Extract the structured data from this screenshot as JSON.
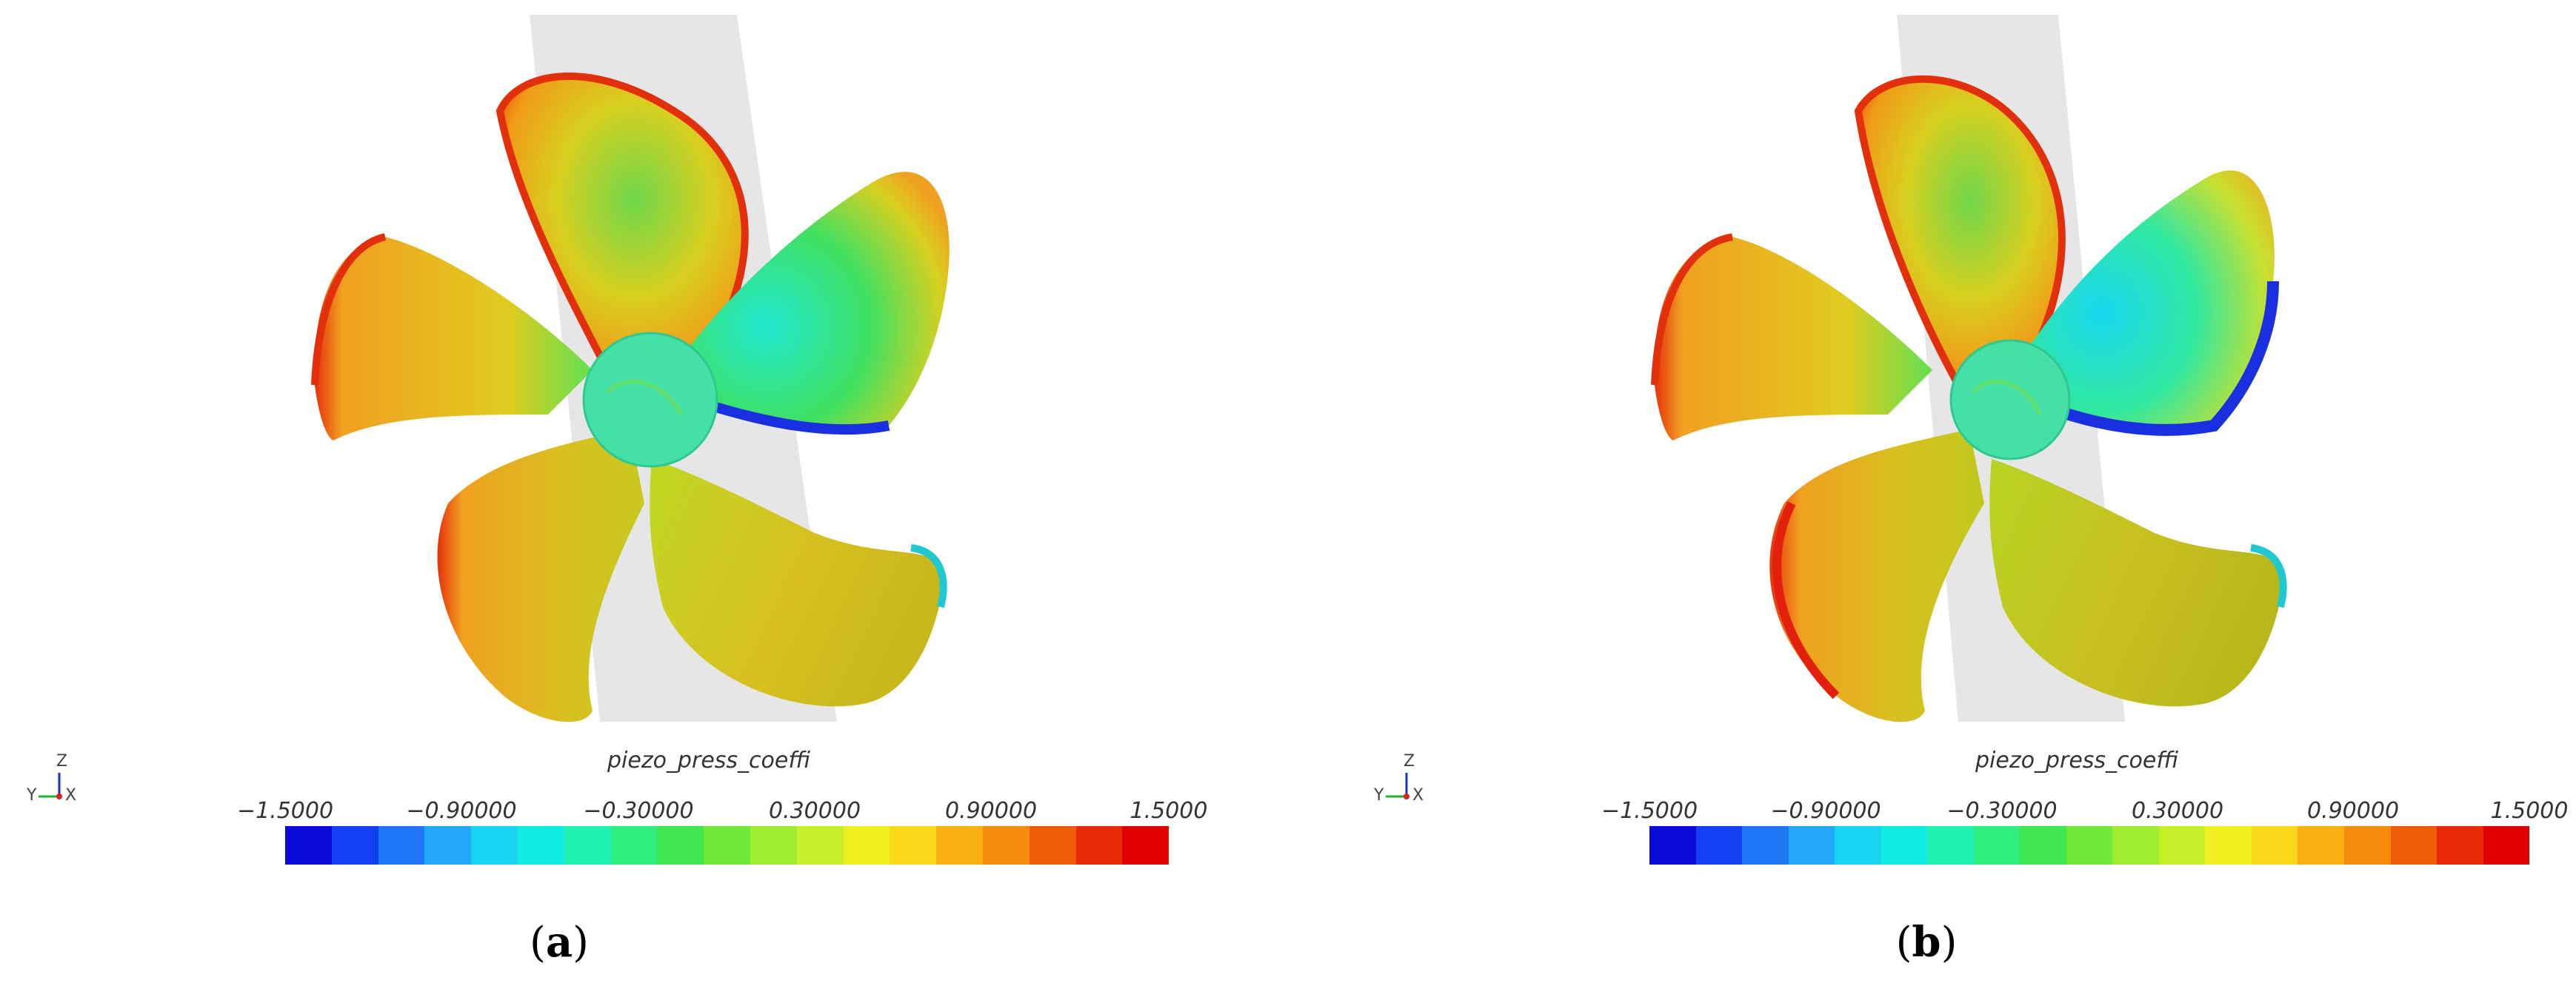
{
  "figure": {
    "colorbar": {
      "title": "piezo_press_coeffi",
      "ticks": [
        "−1.5000",
        "−0.90000",
        "−0.30000",
        "0.30000",
        "0.90000",
        "1.5000"
      ],
      "range": [
        -1.5,
        1.5
      ],
      "colormap": [
        "#0a0ad9",
        "#1040ef",
        "#1e78f5",
        "#22a8f8",
        "#18d2f2",
        "#10ece0",
        "#20f0b0",
        "#30ee80",
        "#40e850",
        "#70e838",
        "#a0ec30",
        "#c8f028",
        "#eef020",
        "#f8d818",
        "#f8b010",
        "#f58a0c",
        "#ef5c08",
        "#e62a06",
        "#e00000"
      ]
    },
    "axes_labels": {
      "z": "Z",
      "y": "Y",
      "x": "X"
    },
    "panels": [
      {
        "label_letter": "a",
        "caption_open": "(",
        "caption_close": ")"
      },
      {
        "label_letter": "b",
        "caption_open": "(",
        "caption_close": ")"
      }
    ],
    "colors": {
      "background": "#ffffff",
      "shaft": "#e6e6e6",
      "blade_red": "#e0200c",
      "blade_orange": "#f29a18",
      "blade_yellow": "#e3d21e",
      "blade_green": "#5fd84a",
      "hub_cyan": "#3fe0b0",
      "blade_blue": "#1a2fe0"
    }
  }
}
